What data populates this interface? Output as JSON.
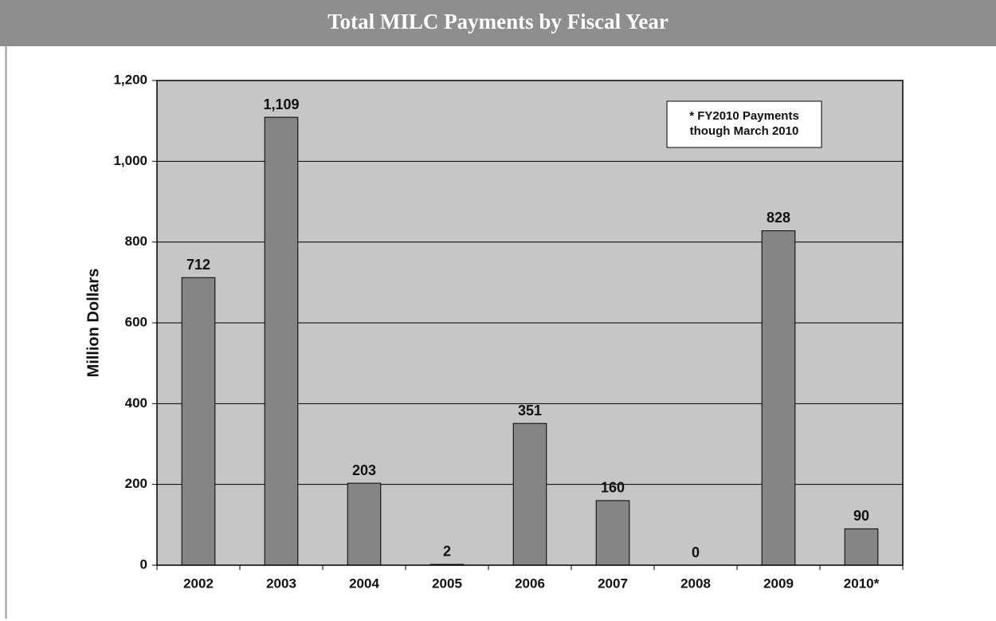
{
  "chart_data": {
    "type": "bar",
    "title": "Total MILC Payments by Fiscal Year",
    "y_label": "Million Dollars",
    "annotation": [
      "* FY2010 Payments",
      "though March 2010"
    ],
    "categories": [
      "2002",
      "2003",
      "2004",
      "2005",
      "2006",
      "2007",
      "2008",
      "2009",
      "2010*"
    ],
    "values": [
      712,
      1109,
      203,
      2,
      351,
      160,
      0,
      828,
      90
    ],
    "value_labels": [
      "712",
      "1,109",
      "203",
      "2",
      "351",
      "160",
      "0",
      "828",
      "90"
    ],
    "color": "#858585",
    "ylim": [
      0,
      1200
    ],
    "yticks": [
      0,
      200,
      400,
      600,
      800,
      {
        "value": 1000,
        "label": "1,000"
      },
      {
        "value": 1200,
        "label": "1,200"
      }
    ],
    "grid": true
  }
}
